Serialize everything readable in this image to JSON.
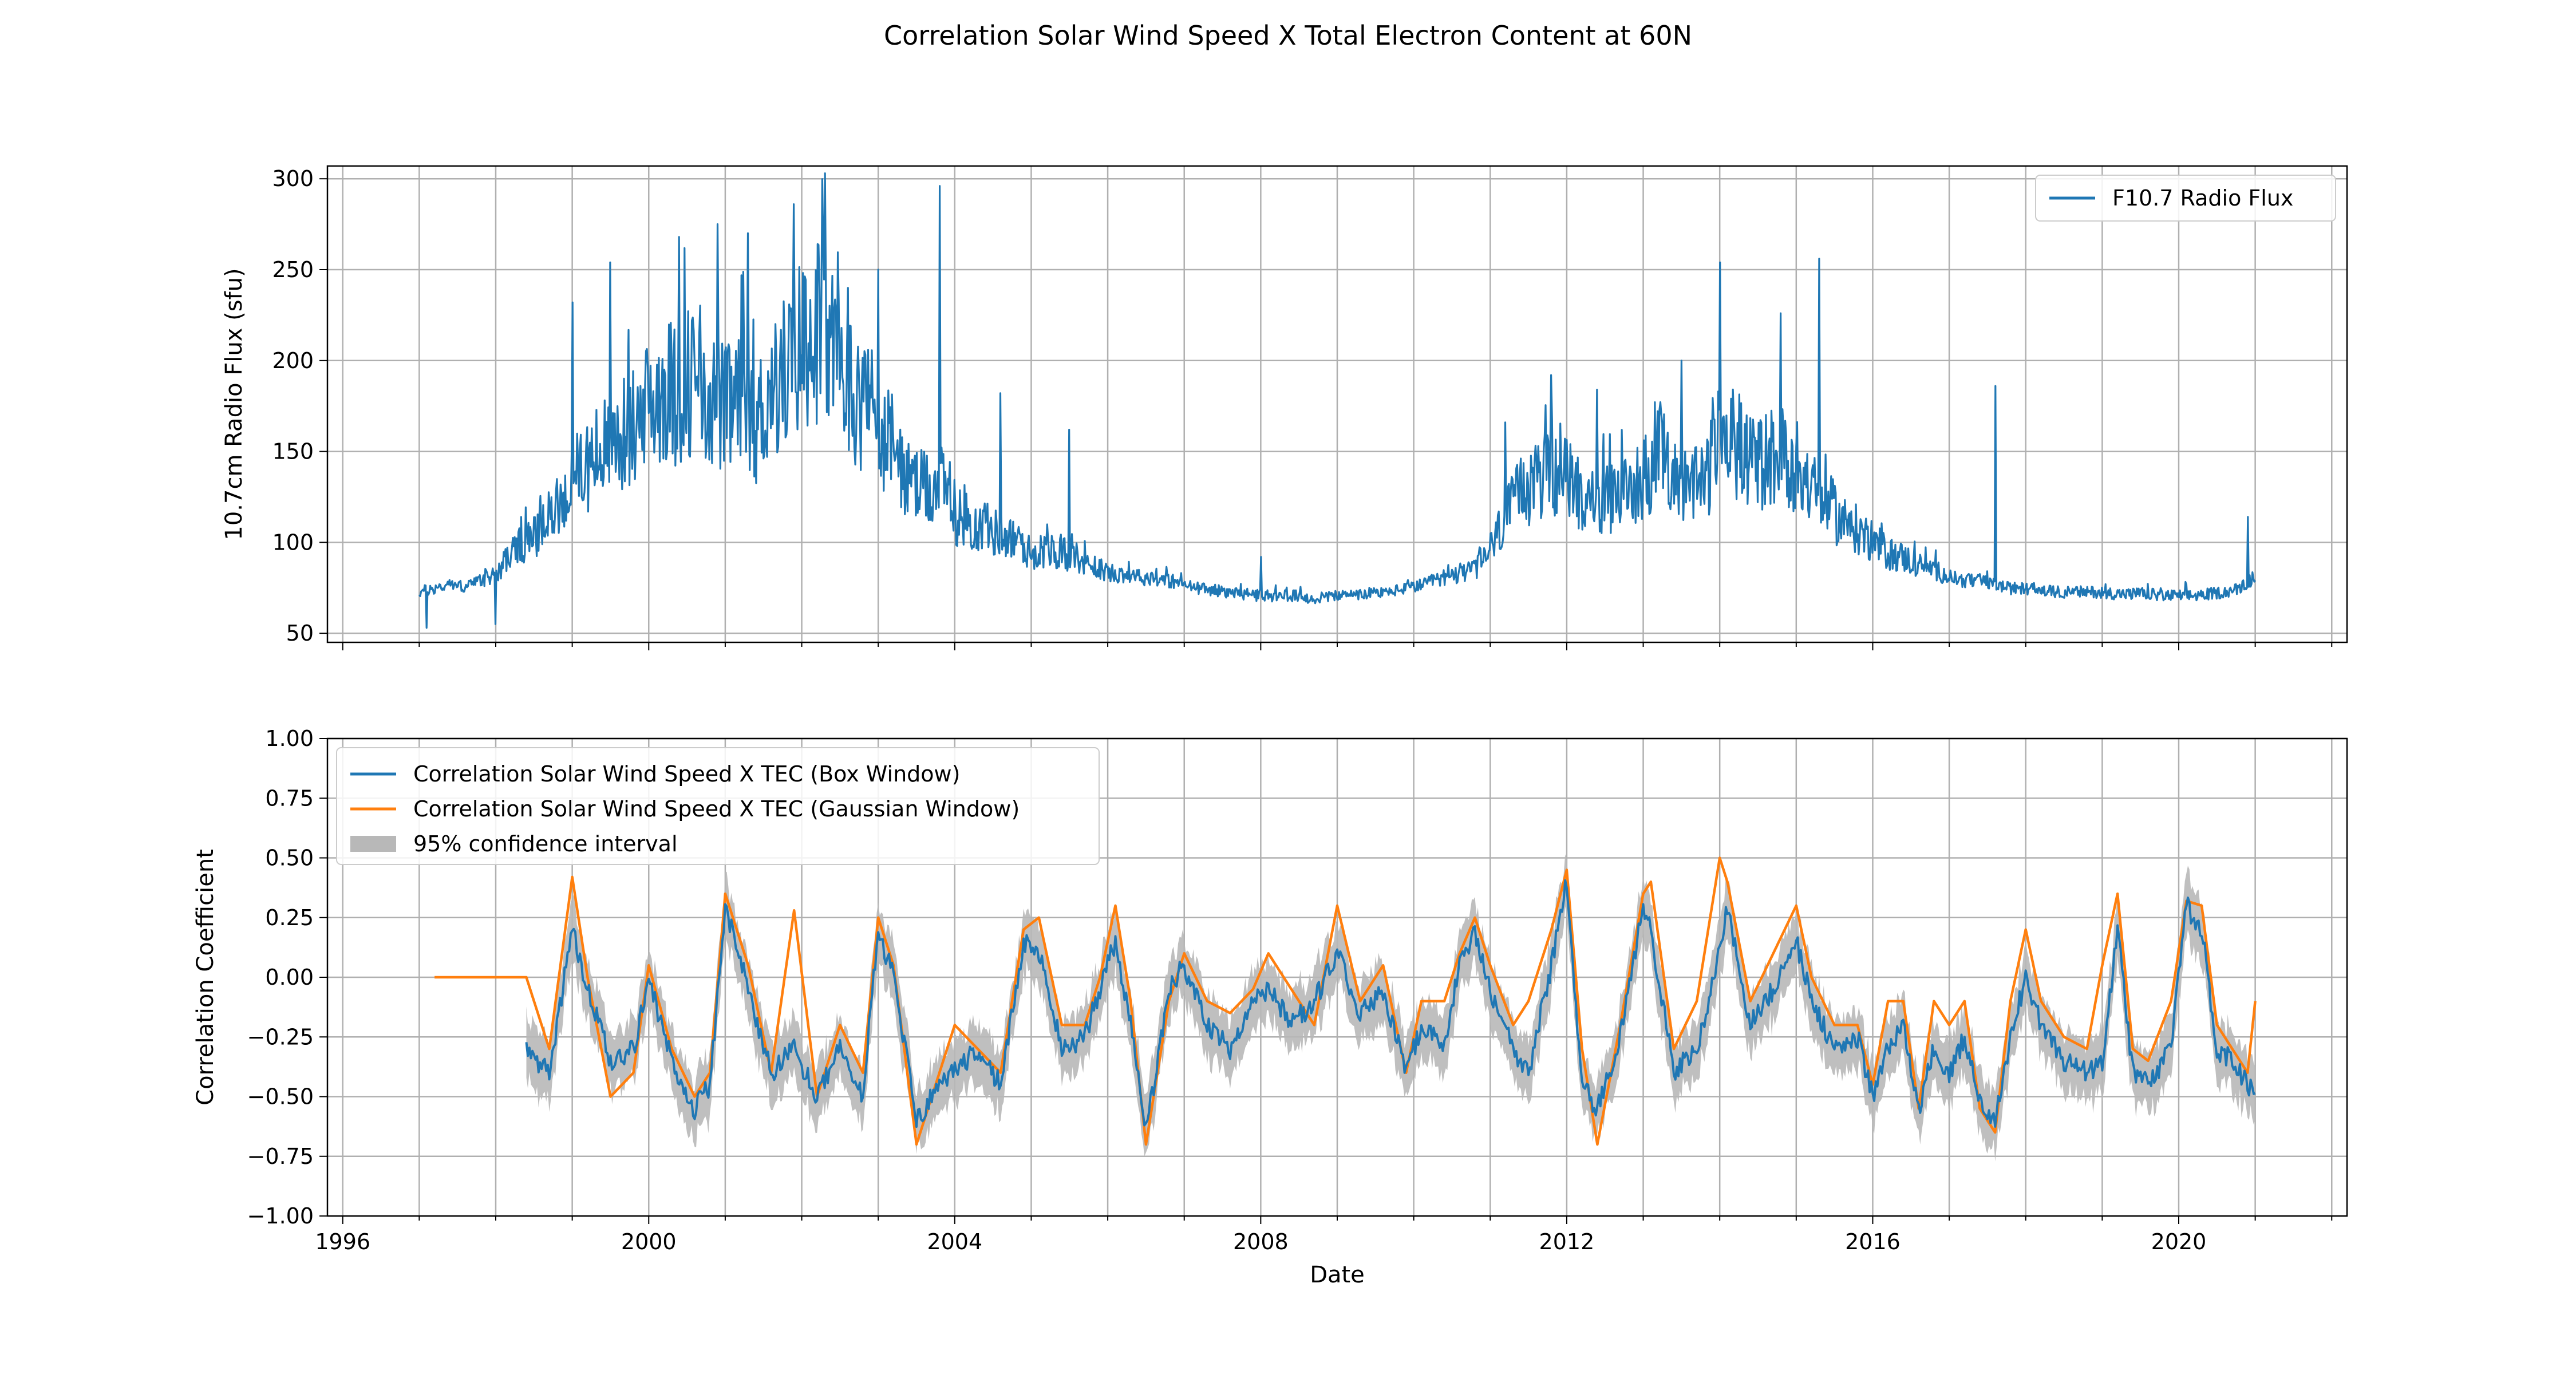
{
  "figure": {
    "title": "Correlation Solar Wind Speed X Total Electron Content at 60N"
  },
  "colors": {
    "blue": "#1f77b4",
    "orange": "#ff7f0e",
    "band": "#b8b8b8",
    "grid": "#b0b0b0",
    "frame": "#000000"
  },
  "chart_data": [
    {
      "type": "line",
      "id": "top",
      "xlabel": "",
      "ylabel": "10.7cm Radio Flux (sfu)",
      "xlim": [
        1995.8,
        2022.2
      ],
      "ylim": [
        45,
        307
      ],
      "grid": true,
      "legend_position": "upper right",
      "x_minor_ticks": true,
      "x_ticks": [
        1996,
        2000,
        2004,
        2008,
        2012,
        2016,
        2020
      ],
      "y_ticks": [
        50,
        100,
        150,
        200,
        250,
        300
      ],
      "y_tick_labels": [
        "50",
        "100",
        "150",
        "200",
        "250",
        "300"
      ],
      "series": [
        {
          "name": "F10.7 Radio Flux",
          "color": "#1f77b4",
          "x": [
            1997.0,
            1997.2,
            1997.4,
            1997.6,
            1997.8,
            1998.0,
            1998.2,
            1998.4,
            1998.6,
            1998.8,
            1999.0,
            1999.2,
            1999.4,
            1999.6,
            1999.8,
            2000.0,
            2000.2,
            2000.4,
            2000.6,
            2000.8,
            2001.0,
            2001.2,
            2001.4,
            2001.6,
            2001.8,
            2002.0,
            2002.2,
            2002.4,
            2002.6,
            2002.8,
            2003.0,
            2003.2,
            2003.4,
            2003.6,
            2003.8,
            2004.0,
            2004.2,
            2004.4,
            2004.6,
            2004.8,
            2005.0,
            2005.2,
            2005.4,
            2005.6,
            2005.8,
            2006.0,
            2006.2,
            2006.4,
            2006.6,
            2006.8,
            2007.0,
            2007.2,
            2007.4,
            2007.6,
            2007.8,
            2008.0,
            2008.2,
            2008.4,
            2008.6,
            2008.8,
            2009.0,
            2009.2,
            2009.4,
            2009.6,
            2009.8,
            2010.0,
            2010.2,
            2010.4,
            2010.6,
            2010.8,
            2011.0,
            2011.2,
            2011.4,
            2011.6,
            2011.8,
            2012.0,
            2012.2,
            2012.4,
            2012.6,
            2012.8,
            2013.0,
            2013.2,
            2013.4,
            2013.6,
            2013.8,
            2014.0,
            2014.2,
            2014.4,
            2014.6,
            2014.8,
            2015.0,
            2015.2,
            2015.4,
            2015.6,
            2015.8,
            2016.0,
            2016.2,
            2016.4,
            2016.6,
            2016.8,
            2017.0,
            2017.2,
            2017.4,
            2017.6,
            2017.8,
            2018.0,
            2018.2,
            2018.4,
            2018.6,
            2018.8,
            2019.0,
            2019.2,
            2019.4,
            2019.6,
            2019.8,
            2020.0,
            2020.2,
            2020.4,
            2020.6,
            2020.8,
            2021.0
          ],
          "y": [
            72,
            74,
            76,
            75,
            78,
            82,
            92,
            98,
            104,
            116,
            128,
            138,
            144,
            150,
            156,
            168,
            178,
            172,
            185,
            172,
            165,
            168,
            158,
            175,
            186,
            200,
            208,
            196,
            178,
            170,
            158,
            145,
            128,
            124,
            128,
            112,
            108,
            104,
            102,
            98,
            92,
            94,
            92,
            90,
            86,
            82,
            82,
            80,
            80,
            78,
            76,
            74,
            73,
            72,
            71,
            70,
            70,
            70,
            69,
            69,
            70,
            70,
            71,
            72,
            73,
            75,
            77,
            80,
            82,
            84,
            94,
            110,
            122,
            130,
            134,
            130,
            122,
            118,
            120,
            124,
            132,
            140,
            136,
            124,
            128,
            150,
            148,
            138,
            140,
            142,
            138,
            124,
            118,
            108,
            104,
            98,
            92,
            90,
            86,
            84,
            80,
            78,
            78,
            76,
            74,
            74,
            73,
            72,
            72,
            72,
            72,
            71,
            71,
            71,
            70,
            70,
            70,
            71,
            72,
            74,
            80
          ],
          "spikes": [
            [
              1997.1,
              53
            ],
            [
              1998.0,
              55
            ],
            [
              1999.0,
              232
            ],
            [
              1999.5,
              254
            ],
            [
              2000.4,
              268
            ],
            [
              2000.9,
              275
            ],
            [
              2001.3,
              270
            ],
            [
              2001.9,
              286
            ],
            [
              2002.6,
              240
            ],
            [
              2003.0,
              250
            ],
            [
              2003.8,
              296
            ],
            [
              2004.6,
              182
            ],
            [
              2005.5,
              162
            ],
            [
              2008.0,
              92
            ],
            [
              2011.2,
              166
            ],
            [
              2011.8,
              192
            ],
            [
              2012.4,
              184
            ],
            [
              2013.5,
              200
            ],
            [
              2014.0,
              254
            ],
            [
              2014.8,
              226
            ],
            [
              2015.3,
              256
            ],
            [
              2017.6,
              186
            ],
            [
              2020.9,
              114
            ]
          ]
        }
      ]
    },
    {
      "type": "line",
      "id": "bottom",
      "xlabel": "Date",
      "ylabel": "Correlation Coefficient",
      "xlim": [
        1995.8,
        2022.2
      ],
      "ylim": [
        -1.0,
        1.0
      ],
      "grid": true,
      "legend_position": "upper left",
      "x_minor_ticks": true,
      "x_ticks": [
        1996,
        2000,
        2004,
        2008,
        2012,
        2016,
        2020
      ],
      "x_tick_labels": [
        "1996",
        "2000",
        "2004",
        "2008",
        "2012",
        "2016",
        "2020"
      ],
      "y_ticks": [
        -1.0,
        -0.75,
        -0.5,
        -0.25,
        0.0,
        0.25,
        0.5,
        0.75,
        1.0
      ],
      "y_tick_labels": [
        "−1.00",
        "−0.75",
        "−0.50",
        "−0.25",
        "0.00",
        "0.25",
        "0.50",
        "0.75",
        "1.00"
      ],
      "band": {
        "name": "95% confidence interval",
        "halfwidth": 0.1
      },
      "series": [
        {
          "name": "Correlation Solar Wind Speed X TEC (Box Window)",
          "color": "#1f77b4",
          "x": [
            1998.4,
            1998.7,
            1999.0,
            1999.2,
            1999.5,
            1999.8,
            2000.0,
            2000.3,
            2000.6,
            2000.8,
            2001.0,
            2001.3,
            2001.6,
            2001.9,
            2002.2,
            2002.5,
            2002.8,
            2003.0,
            2003.2,
            2003.5,
            2003.8,
            2004.0,
            2004.3,
            2004.6,
            2004.9,
            2005.1,
            2005.4,
            2005.7,
            2005.9,
            2006.1,
            2006.3,
            2006.5,
            2006.8,
            2007.0,
            2007.3,
            2007.6,
            2007.9,
            2008.1,
            2008.4,
            2008.7,
            2009.0,
            2009.3,
            2009.6,
            2009.9,
            2010.1,
            2010.4,
            2010.6,
            2010.8,
            2011.0,
            2011.3,
            2011.5,
            2011.8,
            2012.0,
            2012.2,
            2012.4,
            2012.7,
            2013.0,
            2013.1,
            2013.4,
            2013.7,
            2014.0,
            2014.1,
            2014.4,
            2014.7,
            2015.0,
            2015.2,
            2015.5,
            2015.8,
            2016.0,
            2016.2,
            2016.4,
            2016.6,
            2016.8,
            2017.0,
            2017.2,
            2017.4,
            2017.6,
            2017.8,
            2018.0,
            2018.2,
            2018.5,
            2018.8,
            2019.0,
            2019.2,
            2019.4,
            2019.6,
            2019.9,
            2020.1,
            2020.3,
            2020.5,
            2020.7,
            2020.9,
            2021.0
          ],
          "y": [
            -0.3,
            -0.4,
            0.2,
            -0.05,
            -0.35,
            -0.3,
            0.0,
            -0.35,
            -0.55,
            -0.45,
            0.3,
            -0.05,
            -0.4,
            -0.3,
            -0.5,
            -0.3,
            -0.5,
            0.2,
            0.0,
            -0.6,
            -0.45,
            -0.4,
            -0.3,
            -0.45,
            0.15,
            0.1,
            -0.3,
            -0.25,
            -0.05,
            0.15,
            -0.2,
            -0.65,
            -0.05,
            0.05,
            -0.2,
            -0.3,
            -0.1,
            -0.05,
            -0.2,
            -0.1,
            0.1,
            -0.15,
            -0.05,
            -0.4,
            -0.2,
            -0.3,
            0.05,
            0.2,
            -0.05,
            -0.3,
            -0.4,
            0.05,
            0.4,
            -0.45,
            -0.55,
            -0.25,
            0.3,
            0.2,
            -0.4,
            -0.3,
            0.1,
            0.3,
            -0.2,
            -0.05,
            0.15,
            -0.1,
            -0.3,
            -0.25,
            -0.5,
            -0.3,
            -0.2,
            -0.55,
            -0.3,
            -0.4,
            -0.25,
            -0.5,
            -0.6,
            -0.25,
            0.0,
            -0.2,
            -0.35,
            -0.4,
            -0.35,
            0.2,
            -0.4,
            -0.45,
            -0.3,
            0.3,
            0.2,
            -0.3,
            -0.35,
            -0.45,
            -0.5
          ]
        },
        {
          "name": "Correlation Solar Wind Speed X TEC (Gaussian Window)",
          "color": "#ff7f0e",
          "x": [
            1997.2,
            1997.5,
            1997.8,
            1998.1,
            1998.4,
            1998.7,
            1999.0,
            1999.2,
            1999.5,
            1999.8,
            2000.0,
            2000.3,
            2000.6,
            2000.8,
            2001.0,
            2001.3,
            2001.6,
            2001.9,
            2002.2,
            2002.5,
            2002.8,
            2003.0,
            2003.2,
            2003.5,
            2003.8,
            2004.0,
            2004.3,
            2004.6,
            2004.9,
            2005.1,
            2005.4,
            2005.7,
            2005.9,
            2006.1,
            2006.3,
            2006.5,
            2006.8,
            2007.0,
            2007.3,
            2007.6,
            2007.9,
            2008.1,
            2008.4,
            2008.7,
            2009.0,
            2009.3,
            2009.6,
            2009.9,
            2010.1,
            2010.4,
            2010.6,
            2010.8,
            2011.0,
            2011.3,
            2011.5,
            2011.8,
            2012.0,
            2012.2,
            2012.4,
            2012.7,
            2013.0,
            2013.1,
            2013.4,
            2013.7,
            2014.0,
            2014.1,
            2014.4,
            2014.7,
            2015.0,
            2015.2,
            2015.5,
            2015.8,
            2016.0,
            2016.2,
            2016.4,
            2016.6,
            2016.8,
            2017.0,
            2017.2,
            2017.4,
            2017.6,
            2017.8,
            2018.0,
            2018.2,
            2018.5,
            2018.8,
            2019.0,
            2019.2,
            2019.4,
            2019.6,
            2019.9,
            2020.1,
            2020.3,
            2020.5,
            2020.7,
            2020.9,
            2021.0
          ],
          "y": [
            0.0,
            0.0,
            0.0,
            0.0,
            0.0,
            -0.3,
            0.42,
            0.0,
            -0.5,
            -0.4,
            0.05,
            -0.3,
            -0.5,
            -0.4,
            0.35,
            0.05,
            -0.4,
            0.28,
            -0.5,
            -0.2,
            -0.4,
            0.25,
            0.05,
            -0.7,
            -0.4,
            -0.2,
            -0.3,
            -0.4,
            0.2,
            0.25,
            -0.2,
            -0.2,
            0.0,
            0.3,
            -0.1,
            -0.7,
            -0.1,
            0.1,
            -0.1,
            -0.15,
            -0.05,
            0.1,
            -0.05,
            -0.2,
            0.3,
            -0.1,
            0.05,
            -0.4,
            -0.1,
            -0.1,
            0.1,
            0.25,
            0.05,
            -0.2,
            -0.1,
            0.2,
            0.45,
            -0.3,
            -0.7,
            -0.2,
            0.35,
            0.4,
            -0.3,
            -0.1,
            0.5,
            0.4,
            -0.1,
            0.1,
            0.3,
            0.0,
            -0.2,
            -0.2,
            -0.45,
            -0.1,
            -0.1,
            -0.55,
            -0.1,
            -0.2,
            -0.1,
            -0.55,
            -0.65,
            -0.1,
            0.2,
            -0.1,
            -0.25,
            -0.3,
            0.05,
            0.35,
            -0.3,
            -0.35,
            -0.1,
            0.32,
            0.3,
            -0.2,
            -0.3,
            -0.4,
            -0.1
          ]
        }
      ]
    }
  ]
}
